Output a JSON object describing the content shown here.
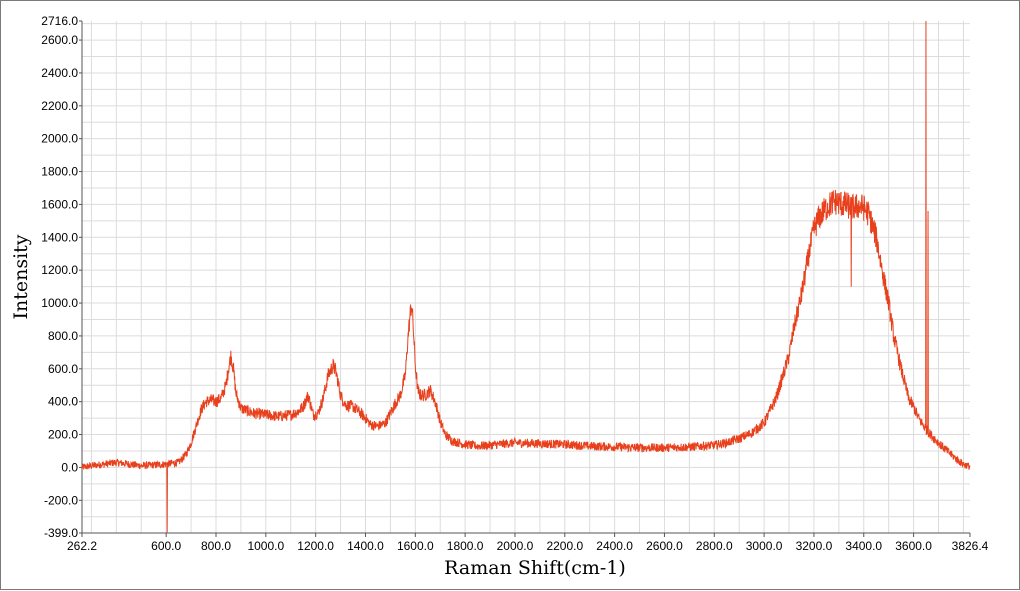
{
  "chart_data": {
    "type": "line",
    "title": "",
    "xlabel": "Raman Shift(cm-1)",
    "ylabel": "Intensity",
    "xlim": [
      262.2,
      3826.4
    ],
    "ylim": [
      -399.0,
      2716.0
    ],
    "x_ticks": [
      262.2,
      600,
      800,
      1000,
      1200,
      1400,
      1600,
      1800,
      2000,
      2200,
      2400,
      2600,
      2800,
      3000,
      3200,
      3400,
      3600,
      3826.4
    ],
    "x_tick_labels": [
      "262.2",
      "600.0",
      "800.0",
      "1000.0",
      "1200.0",
      "1400.0",
      "1600.0",
      "1800.0",
      "2000.0",
      "2200.0",
      "2400.0",
      "2600.0",
      "2800.0",
      "3000.0",
      "3200.0",
      "3400.0",
      "3600.0",
      "3826.4"
    ],
    "y_ticks": [
      -399,
      -200,
      0,
      200,
      400,
      600,
      800,
      1000,
      1200,
      1400,
      1600,
      1800,
      2000,
      2200,
      2400,
      2600,
      2716
    ],
    "y_tick_labels": [
      "-399.0",
      "-200.0",
      "0.0",
      "200.0",
      "400.0",
      "600.0",
      "800.0",
      "1000.0",
      "1200.0",
      "1400.0",
      "1600.0",
      "1800.0",
      "2000.0",
      "2200.0",
      "2400.0",
      "2600.0",
      "2716.0"
    ],
    "grid": true,
    "line_color": "#e8401c",
    "series": [
      {
        "name": "",
        "x": [
          262,
          300,
          350,
          400,
          450,
          500,
          550,
          600,
          620,
          650,
          680,
          700,
          720,
          740,
          760,
          780,
          800,
          820,
          840,
          850,
          860,
          870,
          880,
          900,
          950,
          1000,
          1050,
          1100,
          1130,
          1150,
          1170,
          1190,
          1210,
          1230,
          1250,
          1270,
          1280,
          1290,
          1300,
          1320,
          1350,
          1380,
          1400,
          1420,
          1450,
          1480,
          1500,
          1520,
          1540,
          1560,
          1570,
          1580,
          1585,
          1590,
          1600,
          1610,
          1620,
          1640,
          1660,
          1680,
          1700,
          1720,
          1750,
          1800,
          1850,
          1900,
          2000,
          2100,
          2200,
          2300,
          2400,
          2500,
          2600,
          2700,
          2800,
          2850,
          2900,
          2950,
          3000,
          3050,
          3100,
          3120,
          3150,
          3180,
          3200,
          3220,
          3250,
          3280,
          3300,
          3320,
          3340,
          3360,
          3380,
          3400,
          3420,
          3450,
          3480,
          3500,
          3520,
          3550,
          3580,
          3600,
          3620,
          3650,
          3680,
          3700,
          3720,
          3750,
          3780,
          3800,
          3826
        ],
        "y": [
          0,
          10,
          20,
          30,
          20,
          10,
          15,
          20,
          25,
          30,
          80,
          150,
          250,
          350,
          400,
          410,
          400,
          420,
          500,
          600,
          680,
          600,
          450,
          360,
          330,
          320,
          310,
          320,
          340,
          370,
          440,
          320,
          330,
          420,
          560,
          620,
          590,
          520,
          440,
          380,
          370,
          330,
          300,
          260,
          250,
          270,
          330,
          390,
          440,
          560,
          780,
          940,
          990,
          900,
          620,
          470,
          440,
          440,
          470,
          400,
          280,
          200,
          160,
          140,
          130,
          135,
          150,
          145,
          140,
          130,
          125,
          120,
          120,
          125,
          135,
          150,
          175,
          210,
          270,
          430,
          680,
          850,
          1050,
          1300,
          1450,
          1520,
          1580,
          1620,
          1610,
          1600,
          1590,
          1580,
          1590,
          1580,
          1540,
          1400,
          1150,
          1000,
          800,
          600,
          420,
          370,
          300,
          230,
          180,
          150,
          120,
          80,
          40,
          20,
          5
        ]
      }
    ],
    "spikes": [
      {
        "x": 604,
        "y": -399
      },
      {
        "x": 3350,
        "y": 1100
      },
      {
        "x": 3650,
        "y": 2716
      },
      {
        "x": 3658,
        "y": 1560
      }
    ]
  }
}
